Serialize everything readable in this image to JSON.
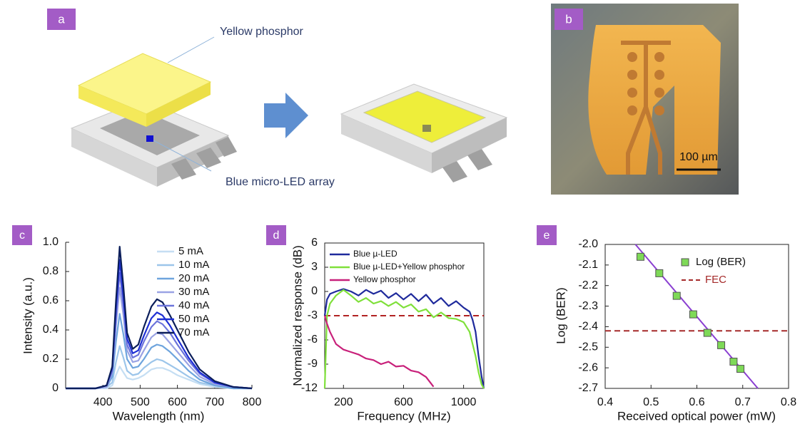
{
  "panels": {
    "a": {
      "label": "a",
      "annotations": [
        "Yellow phosphor",
        "Blue micro-LED array"
      ]
    },
    "b": {
      "label": "b",
      "scale_bar": "100 µm"
    }
  },
  "chart_data": [
    {
      "type": "line",
      "panel_label": "c",
      "y_label": "Intensity (a.u.)",
      "x_label": "Wavelength (nm)",
      "xlim": [
        300,
        800
      ],
      "xticks": [
        400,
        500,
        600,
        700,
        800
      ],
      "ylim": [
        0,
        1
      ],
      "yticks": [
        0,
        0.2,
        0.4,
        0.6,
        0.8,
        {
          "value": 1,
          "label": "1.0"
        }
      ],
      "x": [
        300,
        380,
        410,
        425,
        435,
        445,
        455,
        465,
        480,
        495,
        510,
        530,
        545,
        560,
        580,
        600,
        630,
        660,
        700,
        750,
        800
      ],
      "series": [
        {
          "name": "5 mA",
          "color": "#c5def3",
          "values": [
            0,
            0,
            0,
            0.02,
            0.09,
            0.15,
            0.11,
            0.07,
            0.06,
            0.07,
            0.09,
            0.13,
            0.14,
            0.14,
            0.12,
            0.09,
            0.06,
            0.03,
            0.01,
            0,
            0
          ]
        },
        {
          "name": "10 mA",
          "color": "#9cc5ea",
          "values": [
            0,
            0,
            0.01,
            0.04,
            0.18,
            0.29,
            0.21,
            0.12,
            0.09,
            0.1,
            0.14,
            0.18,
            0.2,
            0.19,
            0.16,
            0.13,
            0.08,
            0.04,
            0.02,
            0,
            0
          ]
        },
        {
          "name": "20 mA",
          "color": "#6ea4dd",
          "values": [
            0,
            0,
            0.01,
            0.08,
            0.32,
            0.51,
            0.37,
            0.2,
            0.14,
            0.15,
            0.2,
            0.28,
            0.3,
            0.29,
            0.25,
            0.2,
            0.12,
            0.06,
            0.02,
            0,
            0
          ]
        },
        {
          "name": "30 mA",
          "color": "#9aa3e4",
          "values": [
            0,
            0,
            0.01,
            0.11,
            0.43,
            0.69,
            0.5,
            0.26,
            0.18,
            0.19,
            0.26,
            0.35,
            0.38,
            0.37,
            0.31,
            0.25,
            0.16,
            0.08,
            0.03,
            0.01,
            0
          ]
        },
        {
          "name": "40 mA",
          "color": "#6c74db",
          "values": [
            0,
            0,
            0.02,
            0.12,
            0.49,
            0.79,
            0.57,
            0.3,
            0.21,
            0.23,
            0.32,
            0.42,
            0.46,
            0.44,
            0.38,
            0.3,
            0.19,
            0.1,
            0.04,
            0.01,
            0
          ]
        },
        {
          "name": "50 mA",
          "color": "#1e2fd4",
          "values": [
            0,
            0,
            0.02,
            0.14,
            0.54,
            0.88,
            0.63,
            0.34,
            0.24,
            0.26,
            0.36,
            0.48,
            0.52,
            0.5,
            0.43,
            0.34,
            0.21,
            0.11,
            0.04,
            0.01,
            0
          ]
        },
        {
          "name": "70 mA",
          "color": "#0b1e5a",
          "values": [
            0,
            0,
            0.02,
            0.15,
            0.6,
            0.97,
            0.7,
            0.38,
            0.27,
            0.3,
            0.42,
            0.56,
            0.61,
            0.59,
            0.5,
            0.4,
            0.25,
            0.13,
            0.05,
            0.01,
            0
          ]
        }
      ]
    },
    {
      "type": "line",
      "panel_label": "d",
      "y_label": "Normalized response (dB)",
      "x_label": "Frequency (MHz)",
      "xlim": [
        75,
        1135
      ],
      "xticks": [
        200,
        600,
        1000
      ],
      "ylim": [
        -12,
        6
      ],
      "yticks": [
        6,
        3,
        0,
        -3,
        -6,
        -9,
        -12
      ],
      "reference_lines": [
        {
          "value": -3,
          "color": "#b22222"
        }
      ],
      "x": [
        75,
        90,
        110,
        150,
        200,
        250,
        300,
        350,
        400,
        450,
        500,
        550,
        600,
        650,
        700,
        750,
        800,
        850,
        900,
        950,
        1000,
        1040,
        1060,
        1080,
        1100,
        1120,
        1135
      ],
      "series": [
        {
          "name": "Blue µ-LED",
          "color": "#1f2a9c",
          "values": [
            -3,
            -1,
            -0.3,
            0,
            0.3,
            0,
            -0.5,
            0.2,
            -0.3,
            0.1,
            -0.8,
            -0.2,
            -1,
            -0.3,
            -1.2,
            -0.4,
            -1.5,
            -0.8,
            -1.8,
            -1.2,
            -2,
            -2.5,
            -3.5,
            -5,
            -8,
            -10.5,
            -12
          ]
        },
        {
          "name": "Blue µ-LED+Yellow phosphor",
          "color": "#7fe03a",
          "values": [
            -12,
            -3,
            -1.5,
            -0.5,
            0.2,
            -0.5,
            -1.3,
            -0.8,
            -1.5,
            -1.2,
            -1.8,
            -1.3,
            -2,
            -1.6,
            -2.5,
            -2.2,
            -3.2,
            -2.6,
            -3.3,
            -3.4,
            -3.8,
            -5,
            -6.5,
            -8,
            -10,
            -11.5,
            -12
          ]
        },
        {
          "name": "Yellow phosphor",
          "color": "#c8207a",
          "values": [
            -3,
            -4,
            -5,
            -6.5,
            -7.2,
            -7.5,
            -7.8,
            -8.3,
            -8.5,
            -9,
            -8.7,
            -9.3,
            -9.2,
            -9.8,
            -10,
            -10.6,
            -11.8,
            null,
            null,
            null,
            null,
            null,
            null,
            null,
            null,
            null,
            null
          ]
        }
      ]
    },
    {
      "type": "scatter",
      "panel_label": "e",
      "y_label": "Log (BER)",
      "x_label": "Received optical power (mW)",
      "xlim": [
        0.4,
        0.8
      ],
      "xticks": [
        0.4,
        0.5,
        0.6,
        0.7,
        0.8
      ],
      "ylim": [
        -2.7,
        -2
      ],
      "yticks": [
        {
          "value": -2,
          "label": "-2.0"
        },
        -2.1,
        -2.2,
        -2.3,
        -2.4,
        -2.5,
        -2.6,
        -2.7
      ],
      "reference_lines": [
        {
          "value": -2.42,
          "color": "#a52a2a",
          "label": "FEC"
        }
      ],
      "fit_line": {
        "color": "#8a3fd1",
        "x": [
          0.466,
          0.733
        ],
        "values": [
          -2,
          -2.7
        ]
      },
      "x": [
        0.477,
        0.518,
        0.556,
        0.592,
        0.623,
        0.653,
        0.68,
        0.695
      ],
      "series": [
        {
          "name": "Log (BER)",
          "color": "#7ed957",
          "values": [
            -2.06,
            -2.14,
            -2.25,
            -2.34,
            -2.43,
            -2.49,
            -2.57,
            -2.605
          ]
        }
      ]
    }
  ]
}
